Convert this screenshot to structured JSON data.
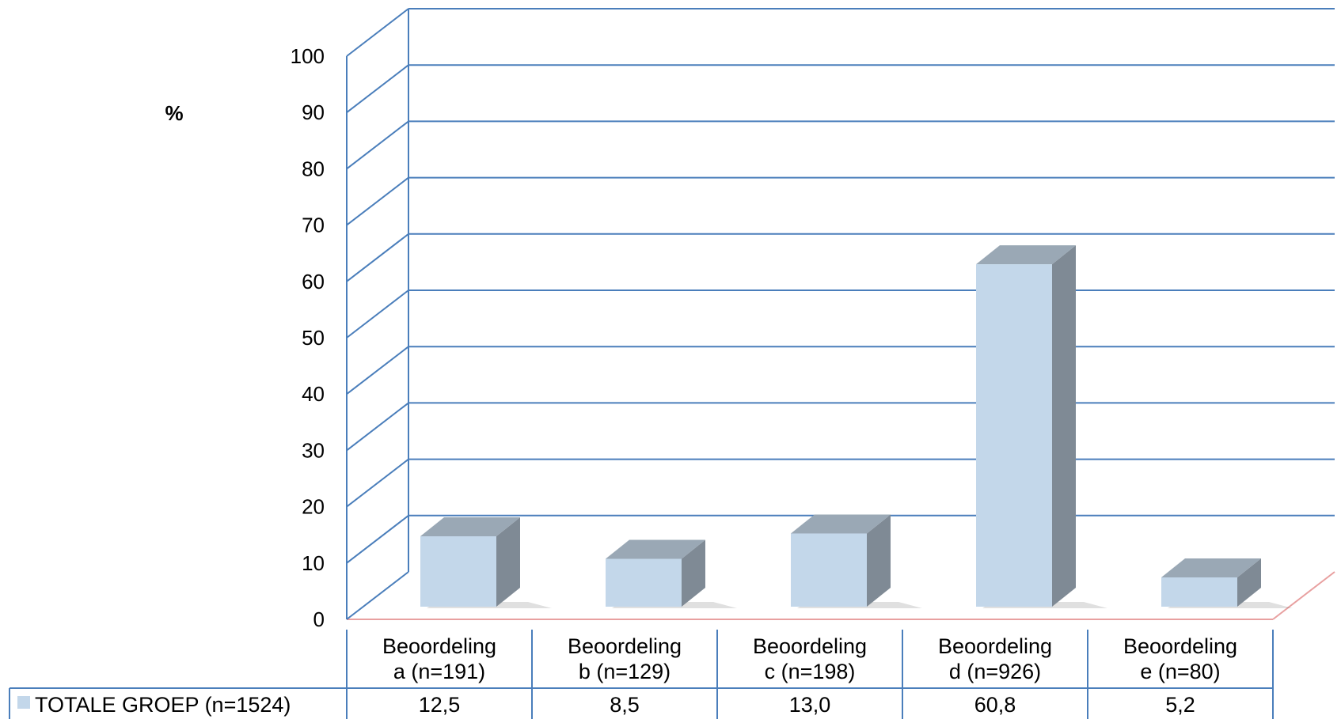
{
  "chart_data": {
    "type": "bar",
    "title": "",
    "xlabel": "",
    "ylabel": "%",
    "ylim": [
      0,
      100
    ],
    "yticks": [
      0,
      10,
      20,
      30,
      40,
      50,
      60,
      70,
      80,
      90,
      100
    ],
    "grid": true,
    "categories": [
      [
        "Beoordeling",
        "a (n=191)"
      ],
      [
        "Beoordeling",
        "b (n=129)"
      ],
      [
        "Beoordeling",
        "c (n=198)"
      ],
      [
        "Beoordeling",
        "d (n=926)"
      ],
      [
        "Beoordeling",
        "e (n=80)"
      ]
    ],
    "series": [
      {
        "name": "TOTALE GROEP (n=1524)",
        "values": [
          12.5,
          8.5,
          13.0,
          60.8,
          5.2
        ],
        "value_labels": [
          "12,5",
          "8,5",
          "13,0",
          "60,8",
          "5,2"
        ]
      }
    ],
    "colors": {
      "bar_front": "#c3d7ea",
      "bar_side": "#7f8a95",
      "bar_top": "#9aa8b5",
      "grid": "#4a7ebb",
      "floor_edge": "#e8a0a0",
      "table_border": "#4a7ebb"
    }
  }
}
